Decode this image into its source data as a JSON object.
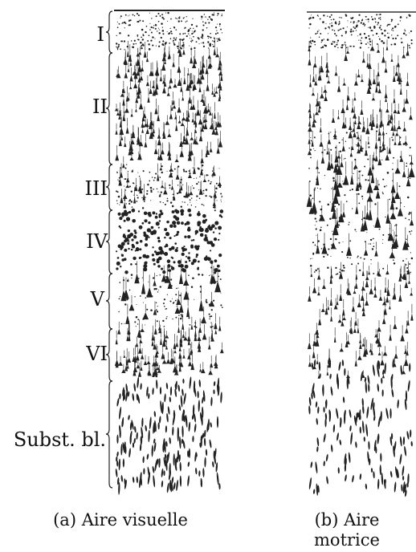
{
  "layers": [
    {
      "id": "I",
      "label": "I"
    },
    {
      "id": "II",
      "label": "II"
    },
    {
      "id": "III",
      "label": "III"
    },
    {
      "id": "IV",
      "label": "IV"
    },
    {
      "id": "V",
      "label": "V"
    },
    {
      "id": "VI",
      "label": "VI"
    },
    {
      "id": "subst",
      "label": "Subst. bl."
    }
  ],
  "panel_a": {
    "caption": "(a) Aire visuelle"
  },
  "panel_b": {
    "caption_line1": "(b) Aire",
    "caption_line2": "motrice"
  },
  "ink_color": "#222222"
}
